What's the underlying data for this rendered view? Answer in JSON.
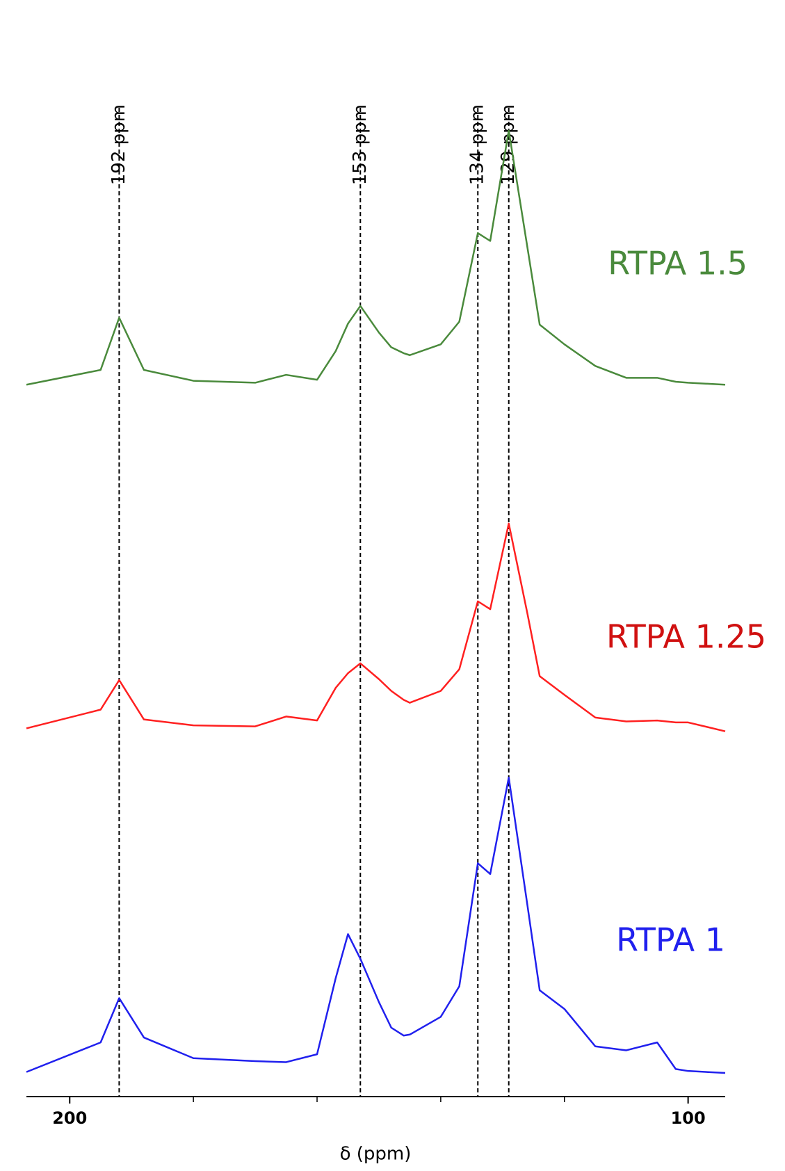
{
  "chart_data": {
    "type": "line",
    "x_label": "δ (ppm)",
    "x": [
      207,
      195,
      192,
      188,
      180,
      170,
      165,
      160,
      157,
      155,
      153,
      150,
      148,
      146,
      145,
      140,
      137,
      134,
      132,
      129,
      126,
      124,
      120,
      115,
      110,
      105,
      102,
      100,
      94
    ],
    "series": [
      {
        "name": "RTPA 1.5",
        "color": "#4a8a3c",
        "values": [
          72.3,
          73.8,
          79.1,
          73.8,
          72.7,
          72.5,
          73.3,
          72.8,
          75.7,
          78.5,
          80.3,
          77.6,
          76.1,
          75.5,
          75.3,
          76.4,
          78.7,
          87.7,
          86.9,
          98.1,
          86.3,
          78.4,
          76.4,
          74.2,
          73,
          73,
          72.6,
          72.5,
          72.3
        ]
      },
      {
        "name": "RTPA 1.25",
        "color": "#ff2020",
        "values": [
          37.4,
          39.3,
          42.3,
          38.3,
          37.7,
          37.6,
          38.6,
          38.2,
          41.5,
          43,
          44,
          42.4,
          41.2,
          40.3,
          40,
          41.2,
          43.4,
          50.3,
          49.5,
          58.2,
          49.1,
          42.7,
          40.8,
          38.5,
          38.1,
          38.2,
          38,
          38,
          37.1
        ]
      },
      {
        "name": "RTPA 1",
        "color": "#2020ee",
        "values": [
          2.5,
          5.5,
          10,
          6,
          3.9,
          3.6,
          3.5,
          4.3,
          12,
          16.5,
          14,
          9.6,
          7,
          6.2,
          6.3,
          8.1,
          11.2,
          23.7,
          22.6,
          32.4,
          19.5,
          10.8,
          8.9,
          5.1,
          4.7,
          5.5,
          2.8,
          2.6,
          2.4
        ]
      }
    ],
    "xlim": [
      207,
      94
    ],
    "ylim": [
      0,
      100
    ],
    "xticks": [
      200,
      100
    ],
    "minor_xticks": [
      180,
      160,
      140,
      120
    ],
    "reference_lines": [
      {
        "value": 192,
        "label": "192 ppm"
      },
      {
        "value": 153,
        "label": "153 ppm"
      },
      {
        "value": 134,
        "label": "134 ppm"
      },
      {
        "value": 129,
        "label": "129 ppm"
      }
    ]
  }
}
